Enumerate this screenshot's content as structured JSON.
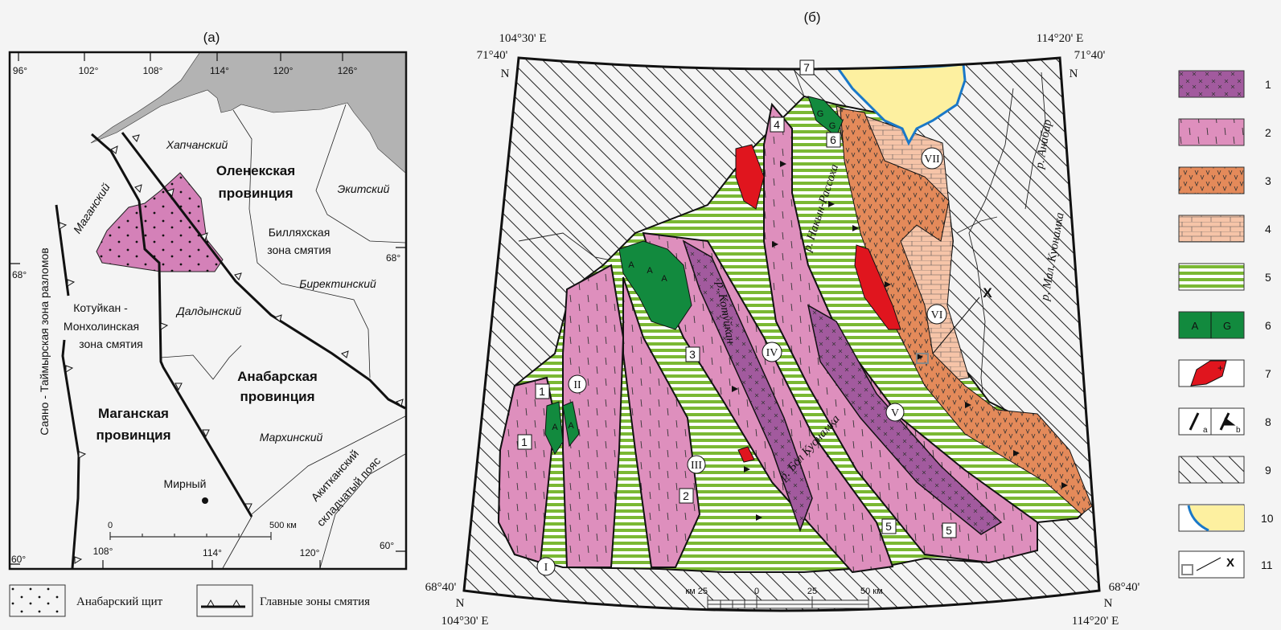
{
  "panel_a": {
    "title": "(а)",
    "lon_ticks_top": [
      "96°",
      "102°",
      "108°",
      "114°",
      "120°",
      "126°"
    ],
    "lon_ticks_bottom": [
      "108°",
      "114°",
      "120°"
    ],
    "lat_ticks": {
      "left_68": "68°",
      "right_68": "68°",
      "left_60": "60°",
      "right_60": "60°"
    },
    "labels": {
      "khapchansky": "Хапчанский",
      "olenek_1": "Оленекская",
      "olenek_2": "провинция",
      "ekitsky": "Экитский",
      "magansky": "Маганский",
      "billyakh_1": "Билляхская",
      "billyakh_2": "зона смятия",
      "birektinsky": "Биректинский",
      "kotuykan_1": "Котуйкан -",
      "kotuykan_2": "Монхолинская",
      "kotuykan_3": "зона смятия",
      "daldynsky": "Далдынский",
      "anabar_1": "Анабарская",
      "anabar_2": "провинция",
      "magan_1": "Маганская",
      "magan_2": "провинция",
      "markhinsky": "Мархинский",
      "sayano": "Саяно - Таймырская зона разломов",
      "akitkan_1": "Акитканский",
      "akitkan_2": "складчатый пояс",
      "mirny": "Мирный"
    },
    "scale": {
      "zero": "0",
      "end": "500 км"
    },
    "colors": {
      "sea": "#b3b3b3",
      "shield": "#d481b8"
    },
    "legend": [
      {
        "symbol": "dots",
        "label": "Анабарский щит"
      },
      {
        "symbol": "thrust-line",
        "label": "Главные зоны смятия"
      }
    ]
  },
  "panel_b": {
    "title": "(б)",
    "corners": {
      "tl_lon": "104°30' E",
      "tl_lat": "71°40'",
      "tl_n": "N",
      "tr_lon": "114°20' E",
      "tr_lat": "71°40'",
      "tr_n": "N",
      "bl_lon": "104°30' E",
      "bl_lat": "68°40'",
      "bl_n": "N",
      "br_lon": "114°20' E",
      "br_lat": "68°40'",
      "br_n": "N"
    },
    "terranes": [
      "I",
      "II",
      "III",
      "IV",
      "V",
      "VI",
      "VII"
    ],
    "boxed_numbers": [
      "7",
      "4",
      "6",
      "3",
      "1",
      "1",
      "2",
      "5",
      "5"
    ],
    "rivers": {
      "kotuykan": "р. Котуйкан",
      "nakyn": "р. Накын-Рассоха",
      "bol_kuonamka": "р. Бол Куонамка",
      "mal_kuonamka": "р. Мал. Куонамка",
      "anabar": "р. Анабар"
    },
    "body_letters": [
      "A",
      "A",
      "A",
      "A",
      "A",
      "G",
      "G"
    ],
    "sample_marker": "X",
    "scale": {
      "left": "км 25",
      "zero": "0",
      "mid": "25",
      "end": "50  км"
    },
    "colors": {
      "purple": "#a25a9e",
      "pink": "#de8fbd",
      "orange": "#e48a5a",
      "brick": "#f6c4a8",
      "green_stripe": "#7ab833",
      "dark_green": "#128a3e",
      "red": "#e0151e",
      "yellow": "#fdf0a0",
      "blue": "#1a78c8"
    }
  },
  "legend": {
    "items": [
      {
        "num": "1",
        "pattern": "purple-crosses"
      },
      {
        "num": "2",
        "pattern": "pink-dashes"
      },
      {
        "num": "3",
        "pattern": "orange-v"
      },
      {
        "num": "4",
        "pattern": "brick"
      },
      {
        "num": "5",
        "pattern": "green-stripes"
      },
      {
        "num": "6",
        "pattern": "green-AG",
        "a": "A",
        "g": "G"
      },
      {
        "num": "7",
        "pattern": "red-plus"
      },
      {
        "num": "8",
        "pattern": "faults",
        "a": "a",
        "b": "b"
      },
      {
        "num": "9",
        "pattern": "hatch"
      },
      {
        "num": "10",
        "pattern": "yellow-blue-thrust"
      },
      {
        "num": "11",
        "pattern": "sample-arrow",
        "x": "X"
      }
    ]
  }
}
